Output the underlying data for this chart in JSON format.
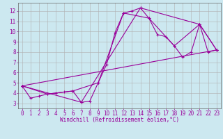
{
  "xlabel": "Windchill (Refroidissement éolien,°C)",
  "bg_color": "#cce8f0",
  "line_color": "#990099",
  "grid_color": "#b0b0b0",
  "xlim": [
    -0.5,
    23.5
  ],
  "ylim": [
    2.5,
    12.8
  ],
  "yticks": [
    3,
    4,
    5,
    6,
    7,
    8,
    9,
    10,
    11,
    12
  ],
  "xticks": [
    0,
    1,
    2,
    3,
    4,
    5,
    6,
    7,
    8,
    9,
    10,
    11,
    12,
    13,
    14,
    15,
    16,
    17,
    18,
    19,
    20,
    21,
    22,
    23
  ],
  "line1_x": [
    0,
    1,
    2,
    3,
    4,
    5,
    6,
    7,
    8,
    9,
    10,
    11,
    12,
    13,
    14,
    15,
    16,
    17,
    18,
    19,
    20,
    21,
    22,
    23
  ],
  "line1_y": [
    4.7,
    3.5,
    3.7,
    3.9,
    4.0,
    4.1,
    4.2,
    3.1,
    3.2,
    5.0,
    6.8,
    9.9,
    11.8,
    12.0,
    12.3,
    11.3,
    9.7,
    9.5,
    8.6,
    7.5,
    8.0,
    10.7,
    8.0,
    8.2
  ],
  "line2_x": [
    0,
    3,
    6,
    9,
    12,
    15,
    18,
    21,
    23
  ],
  "line2_y": [
    4.7,
    3.9,
    4.2,
    5.0,
    11.8,
    11.3,
    8.6,
    10.7,
    8.2
  ],
  "line3_x": [
    0,
    7,
    14,
    21,
    23
  ],
  "line3_y": [
    4.7,
    3.1,
    12.3,
    10.7,
    8.2
  ],
  "line4_x": [
    0,
    23
  ],
  "line4_y": [
    4.7,
    8.2
  ],
  "tick_fontsize": 5.5,
  "xlabel_fontsize": 5.5
}
